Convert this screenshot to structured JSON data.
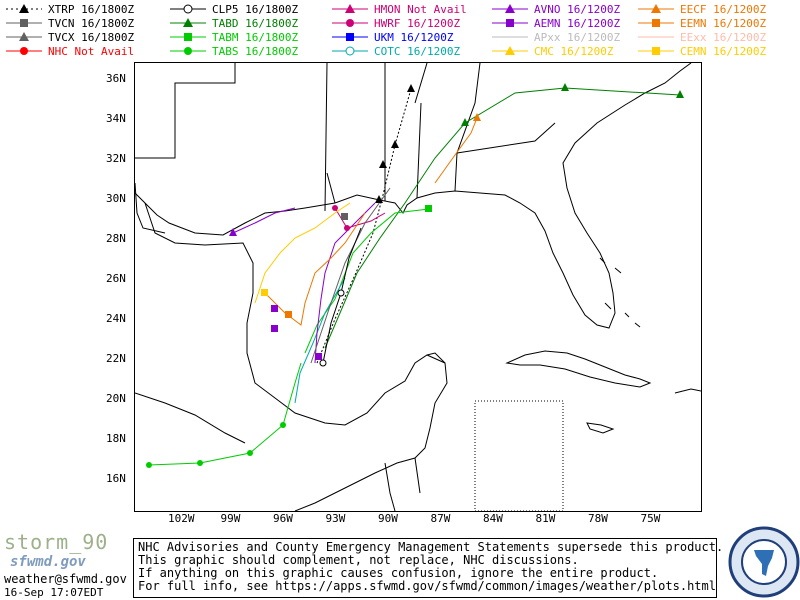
{
  "legend": [
    {
      "label": "XTRP 16/1800Z",
      "color": "#000000",
      "marker": "triangle",
      "style": "dotted"
    },
    {
      "label": "TVCN 16/1800Z",
      "color": "#606060",
      "marker": "square",
      "style": "solid"
    },
    {
      "label": "TVCX 16/1800Z",
      "color": "#606060",
      "marker": "triangle",
      "style": "solid"
    },
    {
      "label": "NHC Not Avail",
      "color": "#ff0000",
      "marker": "circle",
      "style": "solid"
    },
    {
      "label": "CLP5 16/1800Z",
      "color": "#000000",
      "marker": "ring",
      "style": "solid"
    },
    {
      "label": "TABD 16/1800Z",
      "color": "#008000",
      "marker": "triangle",
      "style": "solid"
    },
    {
      "label": "TABM 16/1800Z",
      "color": "#00cc00",
      "marker": "square",
      "style": "solid"
    },
    {
      "label": "TABS 16/1800Z",
      "color": "#00cc00",
      "marker": "circle",
      "style": "solid"
    },
    {
      "label": "HMON Not Avail",
      "color": "#cc0077",
      "marker": "triangle",
      "style": "solid"
    },
    {
      "label": "HWRF 16/1200Z",
      "color": "#cc0077",
      "marker": "circle",
      "style": "solid"
    },
    {
      "label": "UKM  16/1200Z",
      "color": "#0000ff",
      "marker": "square",
      "style": "solid"
    },
    {
      "label": "COTC 16/1200Z",
      "color": "#00aaaa",
      "marker": "ring",
      "style": "solid"
    },
    {
      "label": "AVNO 16/1200Z",
      "color": "#8800cc",
      "marker": "triangle",
      "style": "solid"
    },
    {
      "label": "AEMN 16/1200Z",
      "color": "#8800cc",
      "marker": "square",
      "style": "solid"
    },
    {
      "label": "APxx 16/1200Z",
      "color": "#bbbbbb",
      "marker": "none",
      "style": "solid"
    },
    {
      "label": "CMC  16/1200Z",
      "color": "#ffcc00",
      "marker": "triangle",
      "style": "solid"
    },
    {
      "label": "EECF 16/1200Z",
      "color": "#ee7700",
      "marker": "triangle",
      "style": "solid"
    },
    {
      "label": "EEMN 16/1200Z",
      "color": "#ee7700",
      "marker": "square",
      "style": "solid"
    },
    {
      "label": "EExx 16/1200Z",
      "color": "#ffbbaa",
      "marker": "none",
      "style": "solid"
    },
    {
      "label": "CEMN 16/1200Z",
      "color": "#ffcc00",
      "marker": "square",
      "style": "solid"
    }
  ],
  "map": {
    "lat_labels": [
      "36N",
      "34N",
      "32N",
      "30N",
      "28N",
      "26N",
      "24N",
      "22N",
      "20N",
      "18N",
      "16N"
    ],
    "lon_labels": [
      "102W",
      "99W",
      "96W",
      "93W",
      "90W",
      "87W",
      "84W",
      "81W",
      "78W",
      "75W"
    ]
  },
  "disclaimer": [
    "NHC Advisories and County Emergency Management Statements supersede this product.",
    "This graphic should complement, not replace, NHC discussions.",
    "If anything on this graphic causes confusion, ignore the entire product.",
    "For full info, see  https://apps.sfwmd.gov/sfwmd/common/images/weather/plots.html"
  ],
  "branding": {
    "storm_name": "storm_90",
    "org": "sfwmd.gov",
    "email": "weather@sfwmd.gov",
    "timestamp": "16-Sep 17:07EDT"
  }
}
